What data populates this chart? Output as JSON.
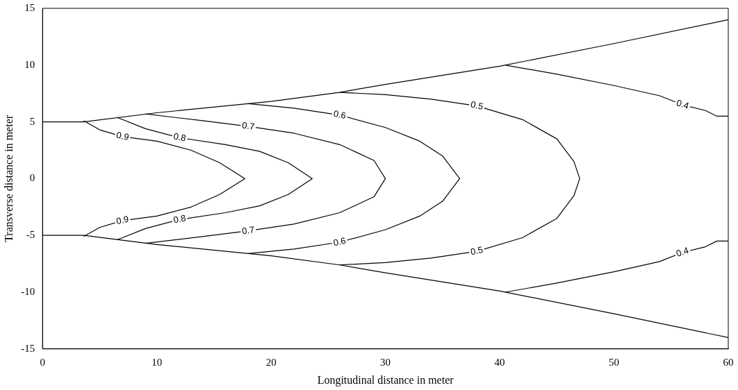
{
  "chart_data": {
    "type": "line",
    "xlabel": "Longitudinal distance in meter",
    "ylabel": "Transverse distance in meter",
    "xlim": [
      0,
      60
    ],
    "ylim": [
      -15,
      15
    ],
    "xticks": [
      0,
      10,
      20,
      30,
      40,
      50,
      60
    ],
    "yticks": [
      -15,
      -10,
      -5,
      0,
      5,
      10,
      15
    ],
    "grid": false,
    "legend": false,
    "marker": "none",
    "line_style": "solid",
    "series": [
      {
        "color": "#000000",
        "x": [
          0,
          3.6,
          10,
          20,
          26,
          30,
          40,
          50,
          60
        ],
        "values": [
          5,
          5,
          5.8,
          6.8,
          7.6,
          8.3,
          9.9,
          11.9,
          14.0
        ]
      },
      {
        "color": "#000000",
        "x": [
          0,
          3.6,
          10,
          20,
          26,
          30,
          40,
          50,
          60
        ],
        "values": [
          -5,
          -5,
          -5.8,
          -6.8,
          -7.6,
          -8.3,
          -9.9,
          -11.9,
          -14.0
        ]
      },
      {
        "name": "0.9",
        "color": "#000000",
        "x": [
          3.6,
          5,
          7,
          10,
          13,
          15.5,
          17.7,
          15.5,
          13,
          10,
          7,
          5,
          3.6
        ],
        "values": [
          5.1,
          4.3,
          3.7,
          3.3,
          2.5,
          1.4,
          0,
          -1.4,
          -2.5,
          -3.3,
          -3.7,
          -4.3,
          -5.1
        ]
      },
      {
        "name": "0.8",
        "color": "#000000",
        "x": [
          6.5,
          9,
          12,
          16,
          19,
          21.5,
          23.6,
          21.5,
          19,
          16,
          12,
          9,
          6.5
        ],
        "values": [
          5.4,
          4.4,
          3.6,
          3.0,
          2.4,
          1.4,
          0,
          -1.4,
          -2.4,
          -3.0,
          -3.6,
          -4.4,
          -5.4
        ]
      },
      {
        "name": "0.7",
        "color": "#000000",
        "x": [
          9,
          14,
          18,
          22,
          26,
          29,
          30,
          29,
          26,
          22,
          18,
          14,
          9
        ],
        "values": [
          5.7,
          5.1,
          4.6,
          4.0,
          3.0,
          1.6,
          0,
          -1.6,
          -3.0,
          -4.0,
          -4.6,
          -5.1,
          -5.7
        ]
      },
      {
        "name": "0.6",
        "color": "#000000",
        "x": [
          18,
          22,
          26,
          30,
          33,
          35,
          36.5,
          35,
          33,
          30,
          26,
          22,
          18
        ],
        "values": [
          6.6,
          6.2,
          5.6,
          4.5,
          3.3,
          2,
          0,
          -2,
          -3.3,
          -4.5,
          -5.6,
          -6.2,
          -6.6
        ]
      },
      {
        "name": "0.5",
        "color": "#000000",
        "x": [
          26,
          30,
          34,
          38,
          42,
          45,
          46.5,
          47,
          46.5,
          45,
          42,
          38,
          34,
          30,
          26
        ],
        "values": [
          7.6,
          7.4,
          7.0,
          6.4,
          5.2,
          3.5,
          1.5,
          0,
          -1.5,
          -3.5,
          -5.2,
          -6.4,
          -7.0,
          -7.4,
          -7.6
        ]
      },
      {
        "name": "0.4",
        "color": "#000000",
        "x": [
          40.5,
          45,
          50,
          54,
          56,
          58,
          59,
          60
        ],
        "values": [
          10,
          9.2,
          8.2,
          7.3,
          6.5,
          6.0,
          5.5,
          5.5
        ]
      },
      {
        "name": "0.4",
        "color": "#000000",
        "x": [
          40.5,
          45,
          50,
          54,
          56,
          58,
          59,
          60
        ],
        "values": [
          -10,
          -9.2,
          -8.2,
          -7.3,
          -6.5,
          -6.0,
          -5.5,
          -5.5
        ]
      }
    ]
  }
}
